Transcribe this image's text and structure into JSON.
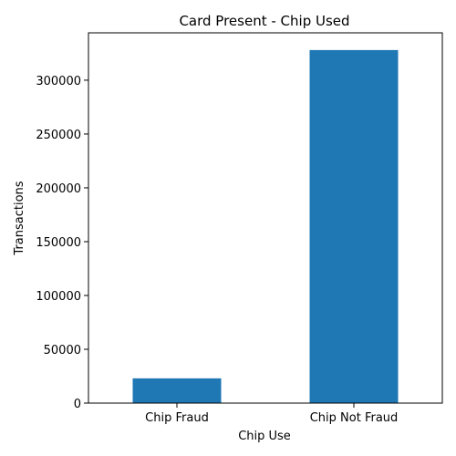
{
  "chart_data": {
    "type": "bar",
    "title": "Card Present - Chip Used",
    "xlabel": "Chip Use",
    "ylabel": "Transactions",
    "categories": [
      "Chip Fraud",
      "Chip Not Fraud"
    ],
    "values": [
      23000,
      328000
    ],
    "ylim": [
      0,
      344000
    ],
    "yticks": [
      0,
      50000,
      100000,
      150000,
      200000,
      250000,
      300000
    ],
    "bar_color": "#1f77b4",
    "grid": false,
    "legend": "none"
  }
}
